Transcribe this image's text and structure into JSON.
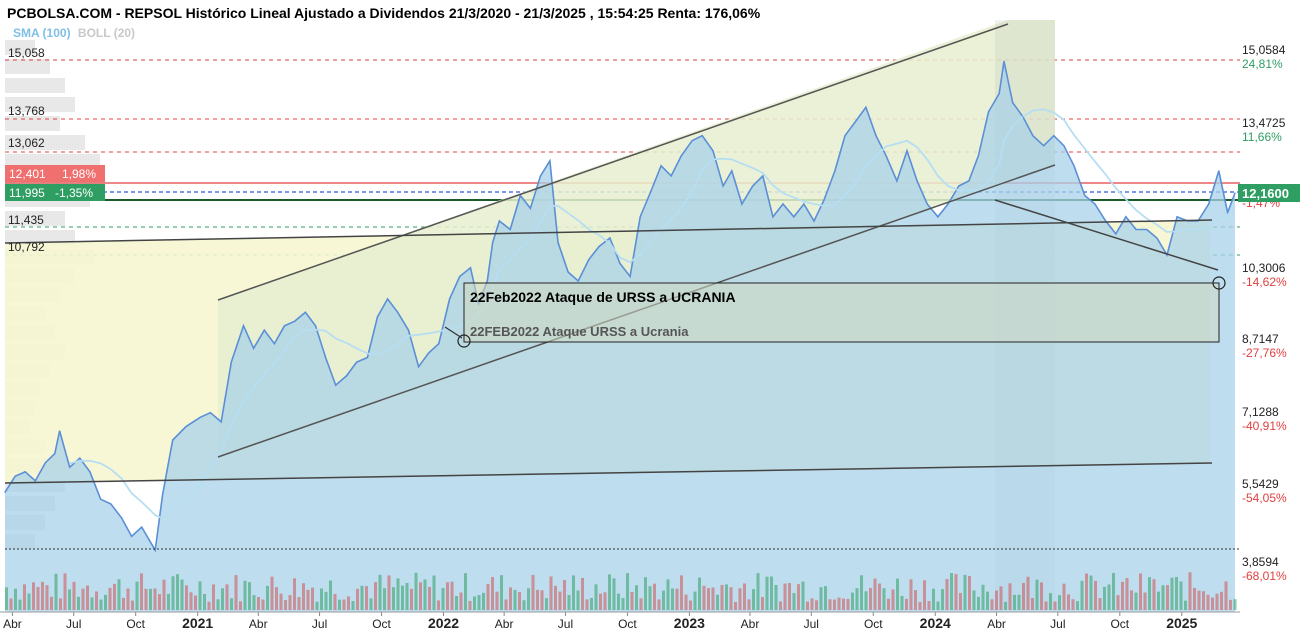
{
  "title": "PCBOLSA.COM - REPSOL Histórico Lineal Ajustado a Dividendos 21/3/2020 - 21/3/2025 , 15:54:25 Renta: 176,06%",
  "indicators": {
    "sma": "SMA (100)",
    "boll": "BOLL (20)"
  },
  "colors": {
    "price_line": "#5b8fd6",
    "price_fill": "#a8d2e8",
    "sma": "#b6def2",
    "channel_fill": "#dfeeb9",
    "red": "#e04040",
    "green": "#2e9e62"
  },
  "chart_data": {
    "type": "area",
    "series": [
      {
        "name": "REPSOL",
        "values": [
          {
            "date": "2020-03-21",
            "close": 5.45
          },
          {
            "date": "2020-04-05",
            "close": 5.8
          },
          {
            "date": "2020-04-20",
            "close": 5.9
          },
          {
            "date": "2020-05-05",
            "close": 5.7
          },
          {
            "date": "2020-05-20",
            "close": 6.1
          },
          {
            "date": "2020-06-03",
            "close": 6.3
          },
          {
            "date": "2020-06-10",
            "close": 6.8
          },
          {
            "date": "2020-06-25",
            "close": 6.0
          },
          {
            "date": "2020-07-10",
            "close": 6.2
          },
          {
            "date": "2020-07-25",
            "close": 5.9
          },
          {
            "date": "2020-08-10",
            "close": 5.3
          },
          {
            "date": "2020-08-25",
            "close": 5.2
          },
          {
            "date": "2020-09-10",
            "close": 4.9
          },
          {
            "date": "2020-09-25",
            "close": 4.5
          },
          {
            "date": "2020-10-10",
            "close": 4.7
          },
          {
            "date": "2020-10-30",
            "close": 4.2
          },
          {
            "date": "2020-11-10",
            "close": 5.4
          },
          {
            "date": "2020-11-25",
            "close": 6.6
          },
          {
            "date": "2020-12-15",
            "close": 6.9
          },
          {
            "date": "2021-01-05",
            "close": 7.1
          },
          {
            "date": "2021-01-20",
            "close": 7.2
          },
          {
            "date": "2021-02-05",
            "close": 7.0
          },
          {
            "date": "2021-02-20",
            "close": 8.3
          },
          {
            "date": "2021-03-10",
            "close": 9.1
          },
          {
            "date": "2021-03-25",
            "close": 8.6
          },
          {
            "date": "2021-04-10",
            "close": 9.0
          },
          {
            "date": "2021-04-25",
            "close": 8.7
          },
          {
            "date": "2021-05-10",
            "close": 9.1
          },
          {
            "date": "2021-05-25",
            "close": 9.2
          },
          {
            "date": "2021-06-10",
            "close": 9.4
          },
          {
            "date": "2021-06-25",
            "close": 9.1
          },
          {
            "date": "2021-07-10",
            "close": 8.4
          },
          {
            "date": "2021-07-25",
            "close": 7.8
          },
          {
            "date": "2021-08-10",
            "close": 8.0
          },
          {
            "date": "2021-08-25",
            "close": 8.3
          },
          {
            "date": "2021-09-10",
            "close": 8.4
          },
          {
            "date": "2021-09-25",
            "close": 9.3
          },
          {
            "date": "2021-10-10",
            "close": 9.7
          },
          {
            "date": "2021-10-25",
            "close": 9.4
          },
          {
            "date": "2021-11-10",
            "close": 9.0
          },
          {
            "date": "2021-11-25",
            "close": 8.2
          },
          {
            "date": "2021-12-10",
            "close": 8.5
          },
          {
            "date": "2021-12-25",
            "close": 8.7
          },
          {
            "date": "2022-01-10",
            "close": 9.7
          },
          {
            "date": "2022-01-25",
            "close": 10.2
          },
          {
            "date": "2022-02-10",
            "close": 10.4
          },
          {
            "date": "2022-02-22",
            "close": 9.6
          },
          {
            "date": "2022-03-07",
            "close": 10.1
          },
          {
            "date": "2022-03-15",
            "close": 11.0
          },
          {
            "date": "2022-03-25",
            "close": 11.5
          },
          {
            "date": "2022-04-10",
            "close": 11.3
          },
          {
            "date": "2022-04-25",
            "close": 12.1
          },
          {
            "date": "2022-05-10",
            "close": 11.8
          },
          {
            "date": "2022-05-25",
            "close": 12.5
          },
          {
            "date": "2022-06-08",
            "close": 12.8
          },
          {
            "date": "2022-06-20",
            "close": 11.0
          },
          {
            "date": "2022-07-05",
            "close": 10.3
          },
          {
            "date": "2022-07-20",
            "close": 10.1
          },
          {
            "date": "2022-08-05",
            "close": 10.6
          },
          {
            "date": "2022-08-20",
            "close": 10.9
          },
          {
            "date": "2022-09-05",
            "close": 11.1
          },
          {
            "date": "2022-09-20",
            "close": 10.5
          },
          {
            "date": "2022-10-05",
            "close": 10.2
          },
          {
            "date": "2022-10-20",
            "close": 11.6
          },
          {
            "date": "2022-11-05",
            "close": 12.2
          },
          {
            "date": "2022-11-20",
            "close": 12.7
          },
          {
            "date": "2022-12-05",
            "close": 12.5
          },
          {
            "date": "2022-12-20",
            "close": 12.9
          },
          {
            "date": "2023-01-05",
            "close": 13.2
          },
          {
            "date": "2023-01-20",
            "close": 13.3
          },
          {
            "date": "2023-02-05",
            "close": 13.0
          },
          {
            "date": "2023-02-20",
            "close": 12.3
          },
          {
            "date": "2023-03-05",
            "close": 12.6
          },
          {
            "date": "2023-03-20",
            "close": 11.9
          },
          {
            "date": "2023-04-05",
            "close": 12.3
          },
          {
            "date": "2023-04-20",
            "close": 12.5
          },
          {
            "date": "2023-05-05",
            "close": 11.6
          },
          {
            "date": "2023-05-20",
            "close": 11.9
          },
          {
            "date": "2023-06-05",
            "close": 11.6
          },
          {
            "date": "2023-06-20",
            "close": 11.9
          },
          {
            "date": "2023-07-05",
            "close": 11.5
          },
          {
            "date": "2023-07-20",
            "close": 12.0
          },
          {
            "date": "2023-08-05",
            "close": 12.6
          },
          {
            "date": "2023-08-20",
            "close": 13.3
          },
          {
            "date": "2023-09-05",
            "close": 13.6
          },
          {
            "date": "2023-09-20",
            "close": 13.9
          },
          {
            "date": "2023-10-05",
            "close": 13.3
          },
          {
            "date": "2023-10-20",
            "close": 12.9
          },
          {
            "date": "2023-11-05",
            "close": 12.4
          },
          {
            "date": "2023-11-20",
            "close": 13.0
          },
          {
            "date": "2023-12-05",
            "close": 12.4
          },
          {
            "date": "2023-12-20",
            "close": 11.9
          },
          {
            "date": "2024-01-05",
            "close": 11.6
          },
          {
            "date": "2024-01-20",
            "close": 11.9
          },
          {
            "date": "2024-02-05",
            "close": 12.3
          },
          {
            "date": "2024-02-20",
            "close": 12.4
          },
          {
            "date": "2024-03-05",
            "close": 12.9
          },
          {
            "date": "2024-03-20",
            "close": 13.8
          },
          {
            "date": "2024-04-05",
            "close": 14.2
          },
          {
            "date": "2024-04-12",
            "close": 14.9
          },
          {
            "date": "2024-04-25",
            "close": 14.0
          },
          {
            "date": "2024-05-10",
            "close": 13.7
          },
          {
            "date": "2024-05-25",
            "close": 13.3
          },
          {
            "date": "2024-06-10",
            "close": 13.1
          },
          {
            "date": "2024-06-25",
            "close": 13.3
          },
          {
            "date": "2024-07-10",
            "close": 13.1
          },
          {
            "date": "2024-07-25",
            "close": 12.7
          },
          {
            "date": "2024-08-10",
            "close": 12.1
          },
          {
            "date": "2024-08-25",
            "close": 11.9
          },
          {
            "date": "2024-09-10",
            "close": 11.5
          },
          {
            "date": "2024-09-25",
            "close": 11.2
          },
          {
            "date": "2024-10-10",
            "close": 11.6
          },
          {
            "date": "2024-10-25",
            "close": 11.3
          },
          {
            "date": "2024-11-10",
            "close": 11.3
          },
          {
            "date": "2024-11-25",
            "close": 11.1
          },
          {
            "date": "2024-12-10",
            "close": 10.7
          },
          {
            "date": "2024-12-25",
            "close": 11.6
          },
          {
            "date": "2025-01-10",
            "close": 11.5
          },
          {
            "date": "2025-01-25",
            "close": 11.5
          },
          {
            "date": "2025-02-10",
            "close": 11.9
          },
          {
            "date": "2025-02-25",
            "close": 12.6
          },
          {
            "date": "2025-03-10",
            "close": 11.7
          },
          {
            "date": "2025-03-21",
            "close": 12.16
          }
        ]
      }
    ],
    "yaxis_right": [
      {
        "price": "15,0584",
        "pct": "24,81%"
      },
      {
        "price": "13,4725",
        "pct": "11,66%"
      },
      {
        "price": "12,1600",
        "pct": "-1,47%"
      },
      {
        "price": "10,3006",
        "pct": "-14,62%"
      },
      {
        "price": "8,7147",
        "pct": "-27,76%"
      },
      {
        "price": "7,1288",
        "pct": "-40,91%"
      },
      {
        "price": "5,5429",
        "pct": "-54,05%"
      },
      {
        "price": "3,8594",
        "pct": "-68,01%"
      }
    ],
    "levels_left": [
      "15,058",
      "13,768",
      "13,062",
      "11,435",
      "10,792"
    ],
    "label_red": {
      "price": "12,401",
      "pct": "1,98%"
    },
    "label_green": {
      "price": "11,995",
      "pct": "-1,35%"
    },
    "current": "12,1600",
    "xaxis": [
      "Abr",
      "Jul",
      "Oct",
      "2021",
      "Abr",
      "Jul",
      "Oct",
      "2022",
      "Abr",
      "Jul",
      "Oct",
      "2023",
      "Abr",
      "Jul",
      "Oct",
      "2024",
      "Abr",
      "Jul",
      "Oct",
      "2025"
    ],
    "annotation_box": "22Feb2022 Ataque de URSS a UCRANIA",
    "annotation_text": "22FEB2022 Ataque URSS a Ucrania",
    "ylim": [
      3.5,
      16.0
    ]
  }
}
